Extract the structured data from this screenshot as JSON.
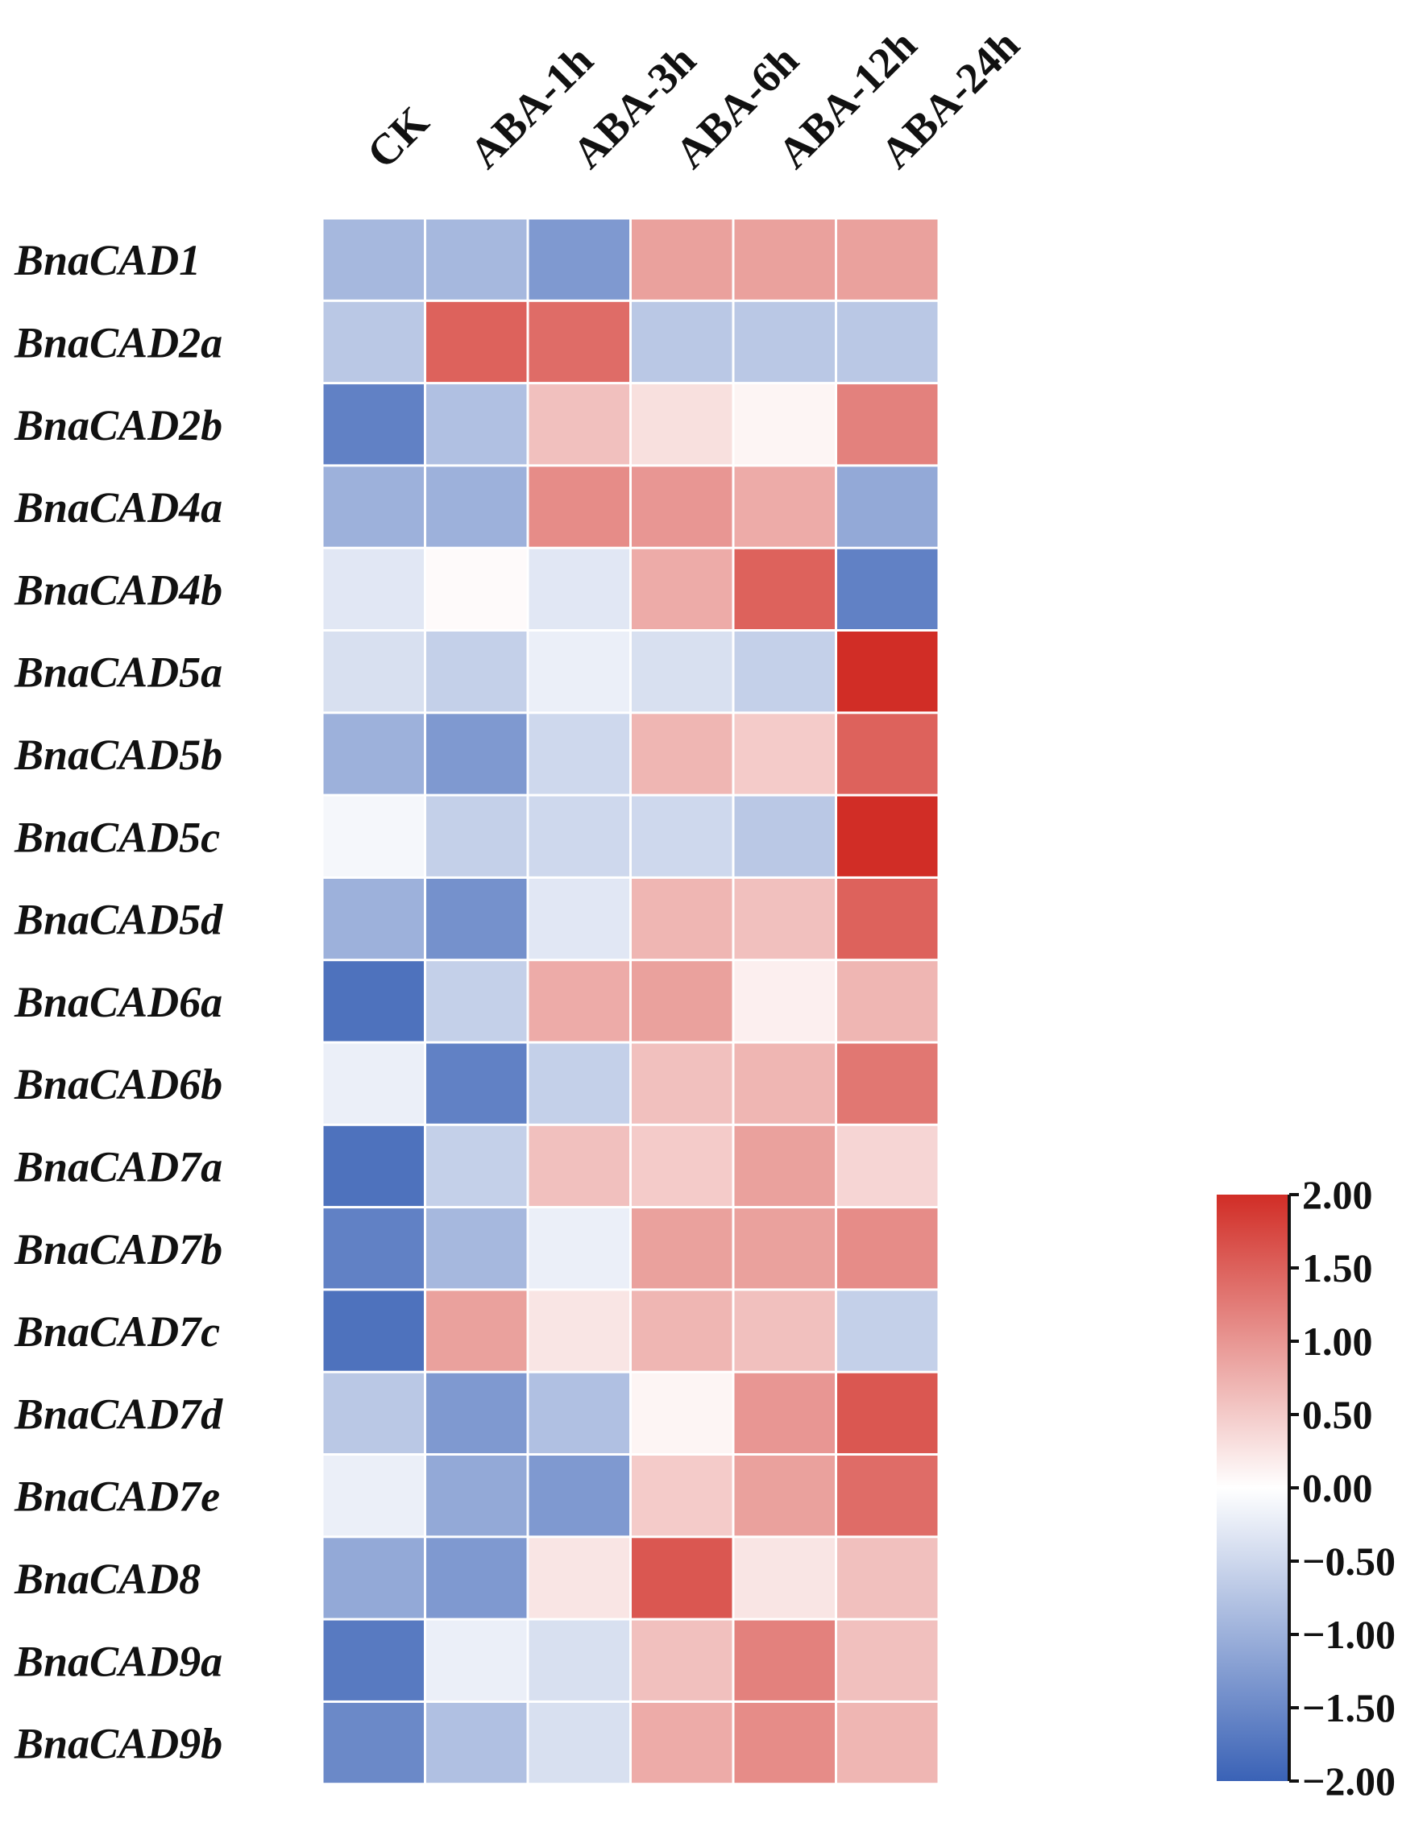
{
  "chart_data": {
    "type": "heatmap",
    "title": "",
    "xlabel": "",
    "ylabel": "",
    "columns": [
      "CK",
      "ABA-1h",
      "ABA-3h",
      "ABA-6h",
      "ABA-12h",
      "ABA-24h"
    ],
    "rows": [
      "BnaCAD1",
      "BnaCAD2a",
      "BnaCAD2b",
      "BnaCAD4a",
      "BnaCAD4b",
      "BnaCAD5a",
      "BnaCAD5b",
      "BnaCAD5c",
      "BnaCAD5d",
      "BnaCAD6a",
      "BnaCAD6b",
      "BnaCAD7a",
      "BnaCAD7b",
      "BnaCAD7c",
      "BnaCAD7d",
      "BnaCAD7e",
      "BnaCAD8",
      "BnaCAD9a",
      "BnaCAD9b"
    ],
    "values": [
      [
        -0.9,
        -0.9,
        -1.3,
        0.9,
        0.9,
        0.9
      ],
      [
        -0.7,
        1.5,
        1.4,
        -0.7,
        -0.7,
        -0.7
      ],
      [
        -1.6,
        -0.8,
        0.6,
        0.3,
        0.1,
        1.2
      ],
      [
        -1.0,
        -1.0,
        1.1,
        1.0,
        0.8,
        -1.1
      ],
      [
        -0.3,
        0.05,
        -0.3,
        0.8,
        1.5,
        -1.6
      ],
      [
        -0.4,
        -0.6,
        -0.2,
        -0.4,
        -0.6,
        2.0
      ],
      [
        -1.0,
        -1.3,
        -0.5,
        0.7,
        0.5,
        1.5
      ],
      [
        -0.1,
        -0.6,
        -0.5,
        -0.5,
        -0.7,
        2.0
      ],
      [
        -1.0,
        -1.4,
        -0.3,
        0.7,
        0.6,
        1.5
      ],
      [
        -1.8,
        -0.6,
        0.8,
        0.9,
        0.15,
        0.7
      ],
      [
        -0.2,
        -1.6,
        -0.6,
        0.6,
        0.7,
        1.3
      ],
      [
        -1.8,
        -0.6,
        0.6,
        0.5,
        0.9,
        0.4
      ],
      [
        -1.6,
        -0.9,
        -0.2,
        0.9,
        0.9,
        1.1
      ],
      [
        -1.8,
        0.9,
        0.25,
        0.7,
        0.6,
        -0.6
      ],
      [
        -0.7,
        -1.3,
        -0.8,
        0.1,
        1.0,
        1.6
      ],
      [
        -0.2,
        -1.1,
        -1.3,
        0.5,
        0.9,
        1.4
      ],
      [
        -1.1,
        -1.3,
        0.25,
        1.6,
        0.25,
        0.6
      ],
      [
        -1.7,
        -0.2,
        -0.4,
        0.6,
        1.2,
        0.6
      ],
      [
        -1.5,
        -0.8,
        -0.4,
        0.8,
        1.1,
        0.7
      ]
    ],
    "colorbar": {
      "min": -2.0,
      "max": 2.0,
      "ticks": [
        "2.00",
        "1.50",
        "1.00",
        "0.50",
        "0.00",
        "−0.50",
        "−1.00",
        "−1.50",
        "−2.00"
      ],
      "tick_values": [
        2.0,
        1.5,
        1.0,
        0.5,
        0.0,
        -0.5,
        -1.0,
        -1.5,
        -2.0
      ],
      "colors": {
        "low": "#3a62b6",
        "mid": "#ffffff",
        "high": "#d12d26"
      }
    },
    "grid": true,
    "legend_position": "bottom-right"
  }
}
